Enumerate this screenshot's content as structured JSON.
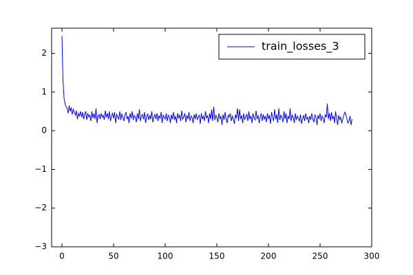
{
  "chart_data": {
    "type": "line",
    "series": [
      {
        "name": "train_losses_3",
        "color": "#0000ff",
        "values": [
          2.45,
          1.3,
          0.85,
          0.7,
          0.62,
          0.58,
          0.45,
          0.65,
          0.5,
          0.6,
          0.42,
          0.55,
          0.48,
          0.4,
          0.52,
          0.3,
          0.45,
          0.38,
          0.5,
          0.35,
          0.48,
          0.3,
          0.42,
          0.5,
          0.28,
          0.45,
          0.36,
          0.4,
          0.25,
          0.5,
          0.33,
          0.44,
          0.3,
          0.58,
          0.2,
          0.38,
          0.42,
          0.3,
          0.45,
          0.35,
          0.4,
          0.28,
          0.52,
          0.35,
          0.45,
          0.3,
          0.5,
          0.25,
          0.38,
          0.45,
          0.32,
          0.48,
          0.2,
          0.42,
          0.36,
          0.3,
          0.5,
          0.28,
          0.44,
          0.35,
          0.25,
          0.4,
          0.48,
          0.3,
          0.38,
          0.2,
          0.45,
          0.33,
          0.5,
          0.28,
          0.4,
          0.35,
          0.22,
          0.45,
          0.3,
          0.55,
          0.25,
          0.38,
          0.42,
          0.3,
          0.48,
          0.2,
          0.36,
          0.44,
          0.28,
          0.4,
          0.3,
          0.5,
          0.22,
          0.35,
          0.42,
          0.3,
          0.45,
          0.25,
          0.38,
          0.33,
          0.48,
          0.2,
          0.4,
          0.35,
          0.3,
          0.45,
          0.25,
          0.4,
          0.35,
          0.2,
          0.42,
          0.3,
          0.48,
          0.28,
          0.38,
          0.2,
          0.45,
          0.33,
          0.4,
          0.25,
          0.52,
          0.3,
          0.36,
          0.45,
          0.22,
          0.4,
          0.3,
          0.48,
          0.25,
          0.38,
          0.35,
          0.2,
          0.42,
          0.3,
          0.45,
          0.28,
          0.36,
          0.4,
          0.18,
          0.45,
          0.3,
          0.38,
          0.25,
          0.5,
          0.32,
          0.4,
          0.2,
          0.45,
          0.3,
          0.55,
          0.25,
          0.62,
          0.28,
          0.4,
          0.35,
          0.22,
          0.45,
          0.3,
          0.38,
          0.15,
          0.42,
          0.28,
          0.48,
          0.3,
          0.2,
          0.4,
          0.35,
          0.45,
          0.25,
          0.38,
          0.3,
          0.18,
          0.42,
          0.32,
          0.58,
          0.25,
          0.55,
          0.3,
          0.4,
          0.2,
          0.45,
          0.28,
          0.36,
          0.42,
          0.25,
          0.5,
          0.3,
          0.38,
          0.2,
          0.45,
          0.33,
          0.28,
          0.52,
          0.3,
          0.4,
          0.2,
          0.35,
          0.45,
          0.25,
          0.42,
          0.3,
          0.38,
          0.22,
          0.45,
          0.3,
          0.4,
          0.18,
          0.48,
          0.35,
          0.25,
          0.55,
          0.3,
          0.42,
          0.2,
          0.58,
          0.28,
          0.4,
          0.35,
          0.22,
          0.5,
          0.3,
          0.45,
          0.2,
          0.38,
          0.3,
          0.58,
          0.25,
          0.4,
          0.35,
          0.2,
          0.45,
          0.28,
          0.38,
          0.32,
          0.25,
          0.42,
          0.18,
          0.3,
          0.4,
          0.25,
          0.45,
          0.3,
          0.35,
          0.2,
          0.38,
          0.28,
          0.45,
          0.3,
          0.22,
          0.42,
          0.35,
          0.15,
          0.4,
          0.3,
          0.45,
          0.25,
          0.38,
          0.32,
          0.2,
          0.42,
          0.35,
          0.7,
          0.3,
          0.45,
          0.25,
          0.48,
          0.3,
          0.38,
          0.2,
          0.5,
          0.32,
          0.15,
          0.4,
          0.28,
          0.35,
          0.2,
          0.3,
          0.4,
          0.48,
          0.42,
          0.3,
          0.2,
          0.25,
          0.38,
          0.15,
          0.3
        ]
      }
    ],
    "xlim": [
      -10,
      300
    ],
    "xticks": [
      0,
      50,
      100,
      150,
      200,
      250,
      300
    ],
    "ylim": [
      -3,
      2.65
    ],
    "yticks": [
      {
        "value": -3,
        "label": "−3"
      },
      {
        "value": -2,
        "label": "−2"
      },
      {
        "value": -1,
        "label": "−1"
      },
      0,
      1,
      2
    ],
    "legend": "upper right"
  }
}
